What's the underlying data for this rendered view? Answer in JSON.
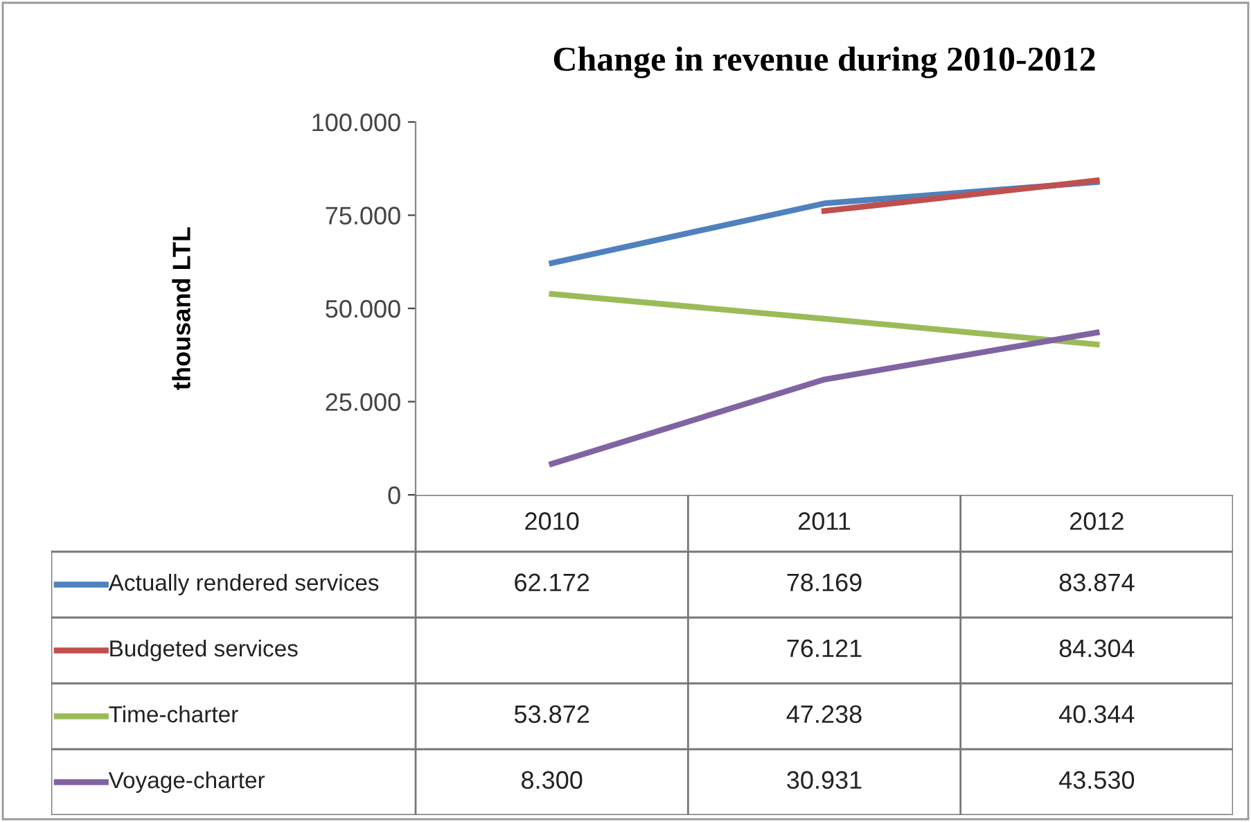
{
  "chart_data": {
    "type": "line",
    "title": "Change in revenue during 2010-2012",
    "ylabel": "thousand LTL",
    "categories": [
      "2010",
      "2011",
      "2012"
    ],
    "ylim": [
      0,
      100000
    ],
    "yticks": [
      {
        "value": 0,
        "label": "0"
      },
      {
        "value": 25000,
        "label": "25.000"
      },
      {
        "value": 50000,
        "label": "50.000"
      },
      {
        "value": 75000,
        "label": "75.000"
      },
      {
        "value": 100000,
        "label": "100.000"
      }
    ],
    "legend": "bottom",
    "grid": false,
    "marker": "none",
    "line_style": "solid",
    "series": [
      {
        "name": "Actually rendered services",
        "color": "#4f81bd",
        "values": [
          62172,
          78169,
          83874
        ],
        "value_labels": [
          "62.172",
          "78.169",
          "83.874"
        ]
      },
      {
        "name": "Budgeted services",
        "color": "#c0504d",
        "values": [
          null,
          76121,
          84304
        ],
        "value_labels": [
          null,
          "76.121",
          "84.304"
        ]
      },
      {
        "name": "Time-charter",
        "color": "#9bbb59",
        "values": [
          53872,
          47238,
          40344
        ],
        "value_labels": [
          "53.872",
          "47.238",
          "40.344"
        ]
      },
      {
        "name": "Voyage-charter",
        "color": "#8064a2",
        "values": [
          8300,
          30931,
          43530
        ],
        "value_labels": [
          "8.300",
          "30.931",
          "43.530"
        ]
      }
    ]
  }
}
